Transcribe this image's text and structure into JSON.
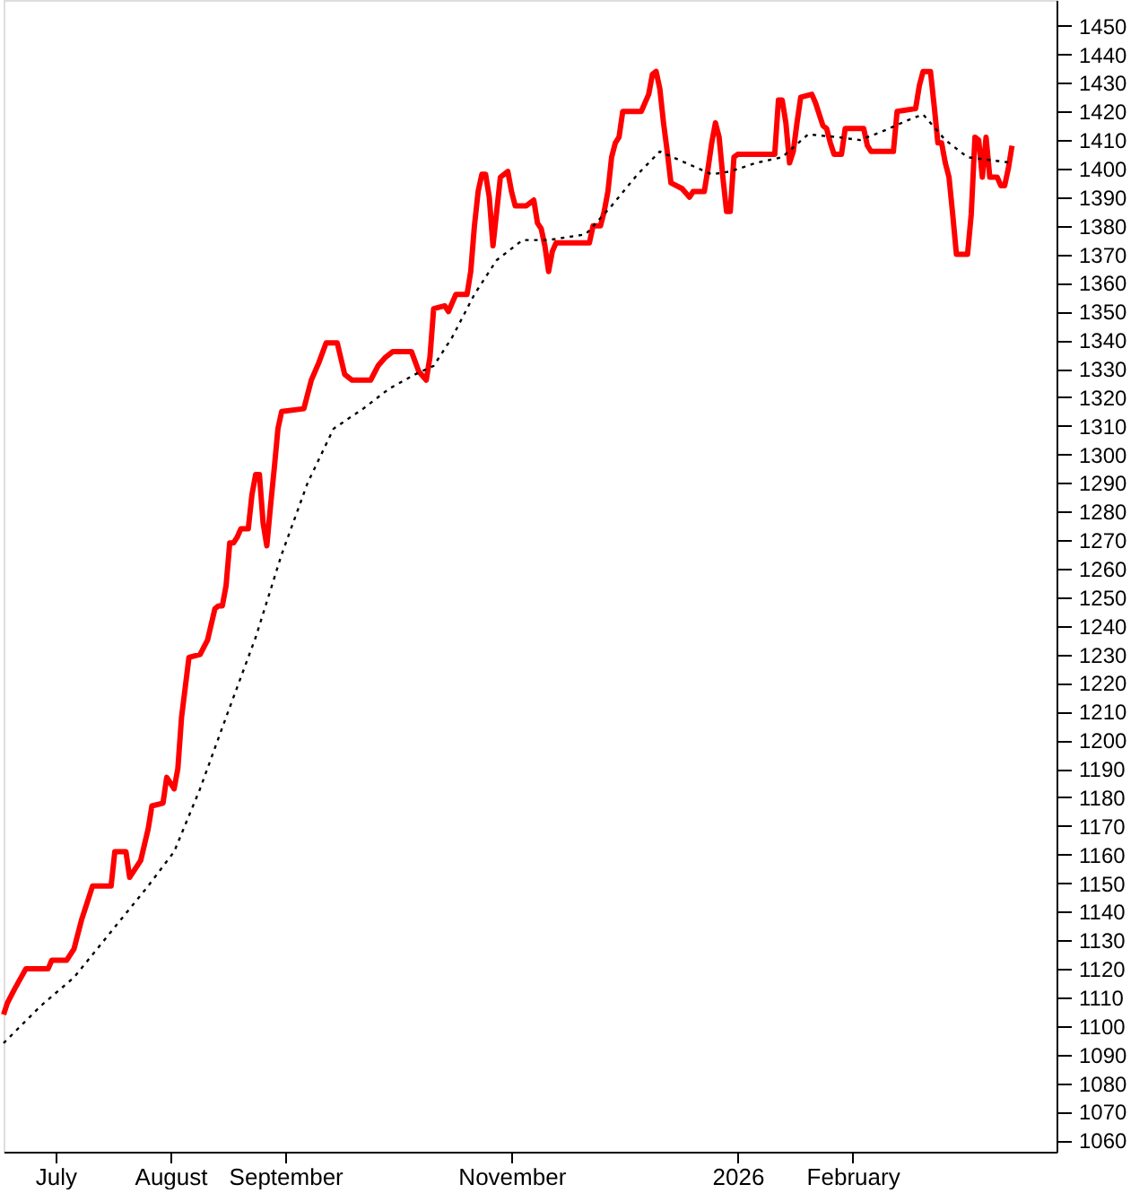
{
  "chart_data": {
    "type": "line",
    "xlim": [
      "2025-06-17",
      "2026-03-28"
    ],
    "ylim": [
      1056,
      1459
    ],
    "xticks": [
      {
        "value": "2025-07-01",
        "label": "July"
      },
      {
        "value": "2025-08-01",
        "label": "August"
      },
      {
        "value": "2025-09-01",
        "label": "September"
      },
      {
        "value": "2025-11-01",
        "label": "November"
      },
      {
        "value": "2026-01-01",
        "label": "2026"
      },
      {
        "value": "2026-02-01",
        "label": "February"
      }
    ],
    "yticks": [
      1060,
      1070,
      1080,
      1090,
      1100,
      1110,
      1120,
      1130,
      1140,
      1150,
      1160,
      1170,
      1180,
      1190,
      1200,
      1210,
      1220,
      1230,
      1240,
      1250,
      1260,
      1270,
      1280,
      1290,
      1300,
      1310,
      1320,
      1330,
      1340,
      1350,
      1360,
      1370,
      1380,
      1390,
      1400,
      1410,
      1420,
      1430,
      1440,
      1450
    ],
    "grid": false,
    "legend": false,
    "marker": "none",
    "series": [
      {
        "color": "#ff0000",
        "line_style": "solid",
        "x": [
          "2025-06-17",
          "2025-06-18",
          "2025-06-20",
          "2025-06-23",
          "2025-06-29",
          "2025-06-30",
          "2025-07-04",
          "2025-07-06",
          "2025-07-08",
          "2025-07-11",
          "2025-07-16",
          "2025-07-17",
          "2025-07-20",
          "2025-07-21",
          "2025-07-24",
          "2025-07-26",
          "2025-07-27",
          "2025-07-30",
          "2025-07-31",
          "2025-08-02",
          "2025-08-03",
          "2025-08-04",
          "2025-08-06",
          "2025-08-09",
          "2025-08-11",
          "2025-08-13",
          "2025-08-14",
          "2025-08-15",
          "2025-08-16",
          "2025-08-17",
          "2025-08-18",
          "2025-08-19",
          "2025-08-20",
          "2025-08-22",
          "2025-08-23",
          "2025-08-24",
          "2025-08-25",
          "2025-08-26",
          "2025-08-27",
          "2025-08-28",
          "2025-08-29",
          "2025-08-30",
          "2025-08-31",
          "2025-09-06",
          "2025-09-08",
          "2025-09-10",
          "2025-09-12",
          "2025-09-15",
          "2025-09-17",
          "2025-09-19",
          "2025-09-24",
          "2025-09-26",
          "2025-09-28",
          "2025-09-30",
          "2025-10-05",
          "2025-10-07",
          "2025-10-09",
          "2025-10-10",
          "2025-10-11",
          "2025-10-14",
          "2025-10-15",
          "2025-10-17",
          "2025-10-20",
          "2025-10-21",
          "2025-10-22",
          "2025-10-23",
          "2025-10-24",
          "2025-10-25",
          "2025-10-26",
          "2025-10-27",
          "2025-10-28",
          "2025-10-29",
          "2025-10-31",
          "2025-11-01",
          "2025-11-02",
          "2025-11-05",
          "2025-11-07",
          "2025-11-08",
          "2025-11-09",
          "2025-11-10",
          "2025-11-11",
          "2025-11-12",
          "2025-11-13",
          "2025-11-22",
          "2025-11-23",
          "2025-11-25",
          "2025-11-26",
          "2025-11-27",
          "2025-11-28",
          "2025-11-29",
          "2025-11-30",
          "2025-12-01",
          "2025-12-06",
          "2025-12-08",
          "2025-12-09",
          "2025-12-10",
          "2025-12-11",
          "2025-12-12",
          "2025-12-13",
          "2025-12-14",
          "2025-12-17",
          "2025-12-19",
          "2025-12-20",
          "2025-12-23",
          "2025-12-24",
          "2025-12-25",
          "2025-12-26",
          "2025-12-27",
          "2025-12-28",
          "2025-12-29",
          "2025-12-30",
          "2025-12-31",
          "2026-01-01",
          "2026-01-11",
          "2026-01-12",
          "2026-01-13",
          "2026-01-14",
          "2026-01-15",
          "2026-01-16",
          "2026-01-17",
          "2026-01-18",
          "2026-01-21",
          "2026-01-22",
          "2026-01-24",
          "2026-01-25",
          "2026-01-26",
          "2026-01-27",
          "2026-01-29",
          "2026-01-30",
          "2026-02-04",
          "2026-02-05",
          "2026-02-06",
          "2026-02-12",
          "2026-02-13",
          "2026-02-18",
          "2026-02-19",
          "2026-02-20",
          "2026-02-22",
          "2026-02-23",
          "2026-02-24",
          "2026-02-25",
          "2026-02-26",
          "2026-02-27",
          "2026-02-28",
          "2026-03-01",
          "2026-03-04",
          "2026-03-05",
          "2026-03-06",
          "2026-03-07",
          "2026-03-08",
          "2026-03-09",
          "2026-03-10",
          "2026-03-12",
          "2026-03-13",
          "2026-03-14",
          "2026-03-15",
          "2026-03-16"
        ],
        "values": [
          1104,
          1108,
          1113,
          1120,
          1120,
          1123,
          1123,
          1127,
          1137,
          1149,
          1149,
          1161,
          1161,
          1152,
          1158,
          1169,
          1177,
          1178,
          1187,
          1183,
          1190,
          1208,
          1229,
          1230,
          1235,
          1246,
          1247,
          1247,
          1254,
          1269,
          1269,
          1271,
          1274,
          1274,
          1286,
          1293,
          1293,
          1276,
          1268,
          1282,
          1295,
          1309,
          1315,
          1316,
          1326,
          1332,
          1339,
          1339,
          1328,
          1326,
          1326,
          1331,
          1334,
          1336,
          1336,
          1329,
          1326,
          1334,
          1351,
          1352,
          1350,
          1356,
          1356,
          1364,
          1380,
          1392,
          1398,
          1398,
          1390,
          1373,
          1385,
          1397,
          1399,
          1392,
          1387,
          1387,
          1389,
          1381,
          1379,
          1373,
          1364,
          1371,
          1374,
          1374,
          1380,
          1380,
          1385,
          1392,
          1404,
          1409,
          1411,
          1420,
          1420,
          1426,
          1433,
          1434,
          1428,
          1416,
          1406,
          1395,
          1393,
          1390,
          1392,
          1392,
          1400,
          1409,
          1416,
          1411,
          1397,
          1385,
          1385,
          1404,
          1405,
          1405,
          1424,
          1424,
          1416,
          1402,
          1406,
          1416,
          1425,
          1426,
          1423,
          1415,
          1414,
          1409,
          1405,
          1405,
          1414,
          1414,
          1408,
          1406,
          1406,
          1420,
          1421,
          1429,
          1434,
          1434,
          1422,
          1409,
          1409,
          1402,
          1397,
          1384,
          1370,
          1370,
          1384,
          1411,
          1410,
          1397,
          1411,
          1397,
          1397,
          1394,
          1394,
          1400,
          1408
        ]
      },
      {
        "color": "#000000",
        "line_style": "dotted",
        "x": [
          "2025-06-17",
          "2025-06-27",
          "2025-07-06",
          "2025-07-16",
          "2025-07-26",
          "2025-08-02",
          "2025-08-09",
          "2025-08-16",
          "2025-08-24",
          "2025-08-31",
          "2025-09-07",
          "2025-09-14",
          "2025-09-22",
          "2025-09-29",
          "2025-10-06",
          "2025-10-11",
          "2025-10-16",
          "2025-10-22",
          "2025-10-28",
          "2025-11-04",
          "2025-11-11",
          "2025-11-21",
          "2025-11-28",
          "2025-12-05",
          "2025-12-11",
          "2025-12-18",
          "2025-12-25",
          "2025-12-30",
          "2026-01-06",
          "2026-01-13",
          "2026-01-20",
          "2026-01-28",
          "2026-02-03",
          "2026-02-09",
          "2026-02-16",
          "2026-02-20",
          "2026-02-26",
          "2026-03-04",
          "2026-03-16"
        ],
        "values": [
          1094,
          1107,
          1117,
          1133,
          1149,
          1161,
          1183,
          1208,
          1236,
          1265,
          1290,
          1309,
          1316,
          1323,
          1328,
          1331,
          1341,
          1356,
          1368,
          1375,
          1375,
          1377,
          1387,
          1398,
          1406,
          1402,
          1398,
          1399,
          1402,
          1404,
          1412,
          1411,
          1410,
          1413,
          1417,
          1419,
          1410,
          1404,
          1402
        ]
      }
    ]
  }
}
